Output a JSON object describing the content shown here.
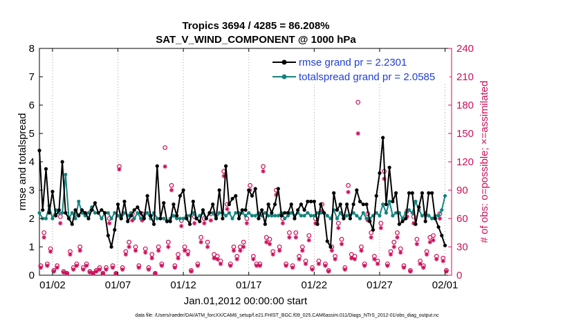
{
  "chart_data": {
    "type": "line",
    "title": "Tropics 3694 / 4285 = 86.208%",
    "subtitle": "SAT_V_WIND_COMPONENT @ 1000 hPa",
    "xlabel": "Jan.01,2012 00:00:00 start",
    "ylabel_left": "rmse and totalspread",
    "ylabel_right": "# of obs: o=possible; ×=assimilated",
    "ylim_left": [
      0,
      8
    ],
    "ylim_right": [
      0,
      240
    ],
    "xlim": [
      1.0,
      32.5
    ],
    "x_ticks": [
      2,
      7,
      12,
      17,
      22,
      27,
      32
    ],
    "x_tick_labels": [
      "01/02",
      "01/07",
      "01/12",
      "01/17",
      "01/22",
      "01/27",
      "02/01"
    ],
    "y_ticks_left": [
      0,
      1,
      2,
      3,
      4,
      5,
      6,
      7,
      8
    ],
    "y_tick_labels_left": [
      "0",
      "1",
      "2",
      "3",
      "4",
      "5",
      "6",
      "7",
      "8"
    ],
    "y_ticks_right": [
      0,
      30,
      60,
      90,
      120,
      150,
      180,
      210,
      240
    ],
    "y_tick_labels_right": [
      "0",
      "30",
      "60",
      "90",
      "120",
      "150",
      "180",
      "210",
      "240"
    ],
    "left_axis_color": "#000000",
    "right_axis_color": "#cc0f5a",
    "footnote": "data file: /Users/raeder/DAI/ATM_forcXX/CAM6_setup/f.e21.FHIST_BGC.f09_025.CAM6assim.011/Diags_NTrS_2012-01/obs_diag_output.nc",
    "series": [
      {
        "name": "rmse grand pr = 2.2301",
        "color": "#000000",
        "marker": "dot",
        "axis": "left",
        "x": [
          1.0,
          1.25,
          1.5,
          1.75,
          2.0,
          2.25,
          2.5,
          2.75,
          3.0,
          3.25,
          3.5,
          3.75,
          4.0,
          4.25,
          4.5,
          4.75,
          5.0,
          5.25,
          5.5,
          5.75,
          6.0,
          6.25,
          6.5,
          6.75,
          7.0,
          7.25,
          7.5,
          7.75,
          8.0,
          8.25,
          8.5,
          8.75,
          9.0,
          9.25,
          9.5,
          9.75,
          10.0,
          10.25,
          10.5,
          10.75,
          11.0,
          11.25,
          11.5,
          11.75,
          12.0,
          12.25,
          12.5,
          12.75,
          13.0,
          13.25,
          13.5,
          13.75,
          14.0,
          14.25,
          14.5,
          14.75,
          15.0,
          15.25,
          15.5,
          15.75,
          16.0,
          16.25,
          16.5,
          16.75,
          17.0,
          17.25,
          17.5,
          17.75,
          18.0,
          18.25,
          18.5,
          18.75,
          19.0,
          19.25,
          19.5,
          19.75,
          20.0,
          20.25,
          20.5,
          20.75,
          21.0,
          21.25,
          21.5,
          21.75,
          22.0,
          22.25,
          22.5,
          22.75,
          23.0,
          23.25,
          23.5,
          23.75,
          24.0,
          24.25,
          24.5,
          24.75,
          25.0,
          25.25,
          25.5,
          25.75,
          26.0,
          26.25,
          26.5,
          26.75,
          27.0,
          27.25,
          27.5,
          27.75,
          28.0,
          28.25,
          28.5,
          28.75,
          29.0,
          29.25,
          29.5,
          29.75,
          30.0,
          30.25,
          30.5,
          30.75,
          31.0,
          31.25,
          31.5,
          31.75,
          32.0
        ],
        "values": [
          4.4,
          2.3,
          3.75,
          2.2,
          2.95,
          2.1,
          2.3,
          4.0,
          2.2,
          2.0,
          1.8,
          2.3,
          2.1,
          2.3,
          2.2,
          2.0,
          2.3,
          2.55,
          2.2,
          2.3,
          2.2,
          1.4,
          1.0,
          1.6,
          2.5,
          2.0,
          2.6,
          1.9,
          2.1,
          2.3,
          2.4,
          2.2,
          2.0,
          2.8,
          2.1,
          1.8,
          3.85,
          2.0,
          2.55,
          1.9,
          1.9,
          2.5,
          2.1,
          2.8,
          3.0,
          2.0,
          1.8,
          2.6,
          2.0,
          1.9,
          2.3,
          2.0,
          2.2,
          2.5,
          2.0,
          3.0,
          2.0,
          3.85,
          2.5,
          2.7,
          2.8,
          2.0,
          2.3,
          2.3,
          3.0,
          2.8,
          3.05,
          2.0,
          2.3,
          1.8,
          2.5,
          2.2,
          2.5,
          3.05,
          2.1,
          2.2,
          2.2,
          2.5,
          2.0,
          2.3,
          2.5,
          2.3,
          2.6,
          2.6,
          2.6,
          1.8,
          2.5,
          2.2,
          1.2,
          1.0,
          2.9,
          2.3,
          2.5,
          2.0,
          2.5,
          2.0,
          2.5,
          3.0,
          2.6,
          2.5,
          2.5,
          1.9,
          1.6,
          2.8,
          3.6,
          4.85,
          2.5,
          3.8,
          2.6,
          2.9,
          1.8,
          1.9,
          2.0,
          2.9,
          2.9,
          1.8,
          2.4,
          2.9,
          1.9,
          2.9,
          2.9,
          2.0,
          1.7,
          1.4,
          1.05
        ]
      },
      {
        "name": "totalspread grand pr = 2.0585",
        "color": "#15837e",
        "marker": "dot",
        "axis": "left",
        "x": [
          1.0,
          1.25,
          1.5,
          1.75,
          2.0,
          2.25,
          2.5,
          2.75,
          3.0,
          3.25,
          3.5,
          3.75,
          4.0,
          4.25,
          4.5,
          4.75,
          5.0,
          5.25,
          5.5,
          5.75,
          6.0,
          6.25,
          6.5,
          6.75,
          7.0,
          7.25,
          7.5,
          7.75,
          8.0,
          8.25,
          8.5,
          8.75,
          9.0,
          9.25,
          9.5,
          9.75,
          10.0,
          10.25,
          10.5,
          10.75,
          11.0,
          11.25,
          11.5,
          11.75,
          12.0,
          12.25,
          12.5,
          12.75,
          13.0,
          13.25,
          13.5,
          13.75,
          14.0,
          14.25,
          14.5,
          14.75,
          15.0,
          15.25,
          15.5,
          15.75,
          16.0,
          16.25,
          16.5,
          16.75,
          17.0,
          17.25,
          17.5,
          17.75,
          18.0,
          18.25,
          18.5,
          18.75,
          19.0,
          19.25,
          19.5,
          19.75,
          20.0,
          20.25,
          20.5,
          20.75,
          21.0,
          21.25,
          21.5,
          21.75,
          22.0,
          22.25,
          22.5,
          22.75,
          23.0,
          23.25,
          23.5,
          23.75,
          24.0,
          24.25,
          24.5,
          24.75,
          25.0,
          25.25,
          25.5,
          25.75,
          26.0,
          26.25,
          26.5,
          26.75,
          27.0,
          27.25,
          27.5,
          27.75,
          28.0,
          28.25,
          28.5,
          28.75,
          29.0,
          29.25,
          29.5,
          29.75,
          30.0,
          30.25,
          30.5,
          30.75,
          31.0,
          31.25,
          31.5,
          31.75,
          32.0
        ],
        "values": [
          2.2,
          2.0,
          2.0,
          2.45,
          2.0,
          2.3,
          2.2,
          2.2,
          3.55,
          2.0,
          2.2,
          2.0,
          2.6,
          2.2,
          2.1,
          2.2,
          2.4,
          2.2,
          2.2,
          2.0,
          2.2,
          2.2,
          2.0,
          2.2,
          2.1,
          2.0,
          2.2,
          2.1,
          2.2,
          2.0,
          2.2,
          2.0,
          2.1,
          2.2,
          2.0,
          2.2,
          2.0,
          2.0,
          2.0,
          1.9,
          2.0,
          2.1,
          2.0,
          2.0,
          2.0,
          2.1,
          2.1,
          2.2,
          2.0,
          2.1,
          2.2,
          2.0,
          2.2,
          2.2,
          2.0,
          2.2,
          2.2,
          2.1,
          2.2,
          2.0,
          2.2,
          2.2,
          2.2,
          2.1,
          2.2,
          2.1,
          2.1,
          2.2,
          2.1,
          2.2,
          2.1,
          2.1,
          2.1,
          2.1,
          2.2,
          2.0,
          2.1,
          2.2,
          2.1,
          2.2,
          2.1,
          2.1,
          2.2,
          2.1,
          2.1,
          2.2,
          2.2,
          2.2,
          2.1,
          2.0,
          2.3,
          2.0,
          2.2,
          2.0,
          2.1,
          2.1,
          2.2,
          2.1,
          2.0,
          2.2,
          2.0,
          2.0,
          2.1,
          2.2,
          2.1,
          2.5,
          2.2,
          2.6,
          2.1,
          2.2,
          2.2,
          2.0,
          2.2,
          2.3,
          2.2,
          2.6,
          2.3,
          2.1,
          2.2,
          2.1,
          2.0,
          2.1,
          2.1,
          2.3,
          2.8
        ]
      },
      {
        "name": "possible",
        "color": "#cc0f5a",
        "marker": "circle",
        "axis": "right",
        "x": [
          1.1,
          1.35,
          1.6,
          1.85,
          2.1,
          2.35,
          2.6,
          2.85,
          3.1,
          3.35,
          3.6,
          3.85,
          4.1,
          4.35,
          4.6,
          4.85,
          5.1,
          5.35,
          5.6,
          5.85,
          6.1,
          6.35,
          6.6,
          6.85,
          7.1,
          7.35,
          7.6,
          7.85,
          8.1,
          8.35,
          8.6,
          8.85,
          9.1,
          9.35,
          9.6,
          9.85,
          10.1,
          10.35,
          10.6,
          10.85,
          11.1,
          11.35,
          11.6,
          11.85,
          12.1,
          12.35,
          12.6,
          12.85,
          13.1,
          13.35,
          13.6,
          13.85,
          14.1,
          14.35,
          14.6,
          14.85,
          15.1,
          15.35,
          15.6,
          15.85,
          16.1,
          16.35,
          16.6,
          16.85,
          17.1,
          17.35,
          17.6,
          17.85,
          18.1,
          18.35,
          18.6,
          18.85,
          19.1,
          19.35,
          19.6,
          19.85,
          20.1,
          20.35,
          20.6,
          20.85,
          21.1,
          21.35,
          21.6,
          21.85,
          22.1,
          22.35,
          22.6,
          22.85,
          23.1,
          23.35,
          23.6,
          23.85,
          24.1,
          24.35,
          24.6,
          24.85,
          25.1,
          25.35,
          25.6,
          25.85,
          26.1,
          26.35,
          26.6,
          26.85,
          27.1,
          27.35,
          27.6,
          27.85,
          28.1,
          28.35,
          28.6,
          28.85,
          29.1,
          29.35,
          29.6,
          29.85,
          30.1,
          30.35,
          30.6,
          30.85,
          31.1,
          31.35,
          31.6,
          31.85,
          32.1
        ],
        "values": [
          10,
          45,
          12,
          28,
          5,
          10,
          62,
          4,
          2,
          25,
          8,
          12,
          30,
          8,
          12,
          4,
          2,
          5,
          8,
          2,
          8,
          60,
          10,
          2,
          115,
          8,
          25,
          35,
          65,
          30,
          10,
          65,
          28,
          8,
          22,
          2,
          30,
          12,
          135,
          35,
          95,
          10,
          22,
          58,
          30,
          25,
          5,
          62,
          12,
          40,
          60,
          35,
          65,
          22,
          20,
          15,
          110,
          75,
          12,
          30,
          20,
          30,
          35,
          60,
          95,
          20,
          12,
          12,
          115,
          40,
          38,
          25,
          90,
          30,
          60,
          12,
          45,
          10,
          45,
          20,
          30,
          15,
          42,
          8,
          60,
          15,
          75,
          12,
          5,
          30,
          20,
          55,
          38,
          8,
          95,
          22,
          20,
          183,
          30,
          12,
          65,
          45,
          20,
          15,
          55,
          110,
          12,
          25,
          35,
          45,
          28,
          10,
          68,
          5,
          62,
          38,
          15,
          10,
          25,
          40,
          42,
          20,
          65,
          18,
          5
        ],
        "ymax": 240
      },
      {
        "name": "assimilated",
        "color": "#cc0f5a",
        "marker": "asterisk",
        "axis": "right",
        "x": [
          1.1,
          1.35,
          1.6,
          1.85,
          2.1,
          2.35,
          2.6,
          2.85,
          3.1,
          3.35,
          3.6,
          3.85,
          4.1,
          4.35,
          4.6,
          4.85,
          5.1,
          5.35,
          5.6,
          5.85,
          6.1,
          6.35,
          6.6,
          6.85,
          7.1,
          7.35,
          7.6,
          7.85,
          8.1,
          8.35,
          8.6,
          8.85,
          9.1,
          9.35,
          9.6,
          9.85,
          10.1,
          10.35,
          10.6,
          10.85,
          11.1,
          11.35,
          11.6,
          11.85,
          12.1,
          12.35,
          12.6,
          12.85,
          13.1,
          13.35,
          13.6,
          13.85,
          14.1,
          14.35,
          14.6,
          14.85,
          15.1,
          15.35,
          15.6,
          15.85,
          16.1,
          16.35,
          16.6,
          16.85,
          17.1,
          17.35,
          17.6,
          17.85,
          18.1,
          18.35,
          18.6,
          18.85,
          19.1,
          19.35,
          19.6,
          19.85,
          20.1,
          20.35,
          20.6,
          20.85,
          21.1,
          21.35,
          21.6,
          21.85,
          22.1,
          22.35,
          22.6,
          22.85,
          23.1,
          23.35,
          23.6,
          23.85,
          24.1,
          24.35,
          24.6,
          24.85,
          25.1,
          25.35,
          25.6,
          25.85,
          26.1,
          26.35,
          26.6,
          26.85,
          27.1,
          27.35,
          27.6,
          27.85,
          28.1,
          28.35,
          28.6,
          28.85,
          29.1,
          29.35,
          29.6,
          29.85,
          30.1,
          30.35,
          30.6,
          30.85,
          31.1,
          31.35,
          31.6,
          31.85,
          32.1
        ],
        "values": [
          8,
          40,
          10,
          25,
          4,
          8,
          55,
          3,
          2,
          22,
          6,
          10,
          26,
          6,
          10,
          3,
          2,
          4,
          6,
          2,
          6,
          55,
          8,
          2,
          112,
          6,
          22,
          30,
          58,
          26,
          8,
          58,
          24,
          6,
          18,
          2,
          26,
          10,
          115,
          30,
          90,
          8,
          18,
          52,
          26,
          22,
          4,
          55,
          10,
          35,
          55,
          30,
          58,
          18,
          17,
          12,
          105,
          70,
          10,
          26,
          17,
          26,
          30,
          55,
          90,
          17,
          10,
          10,
          110,
          35,
          33,
          22,
          85,
          26,
          55,
          10,
          40,
          8,
          40,
          17,
          26,
          12,
          37,
          6,
          55,
          12,
          68,
          10,
          4,
          26,
          17,
          50,
          33,
          6,
          88,
          18,
          17,
          150,
          26,
          10,
          58,
          40,
          17,
          12,
          50,
          102,
          10,
          22,
          30,
          40,
          24,
          8,
          62,
          4,
          55,
          33,
          12,
          8,
          22,
          35,
          37,
          17,
          60,
          15,
          4
        ],
        "ymax": 240
      }
    ]
  }
}
